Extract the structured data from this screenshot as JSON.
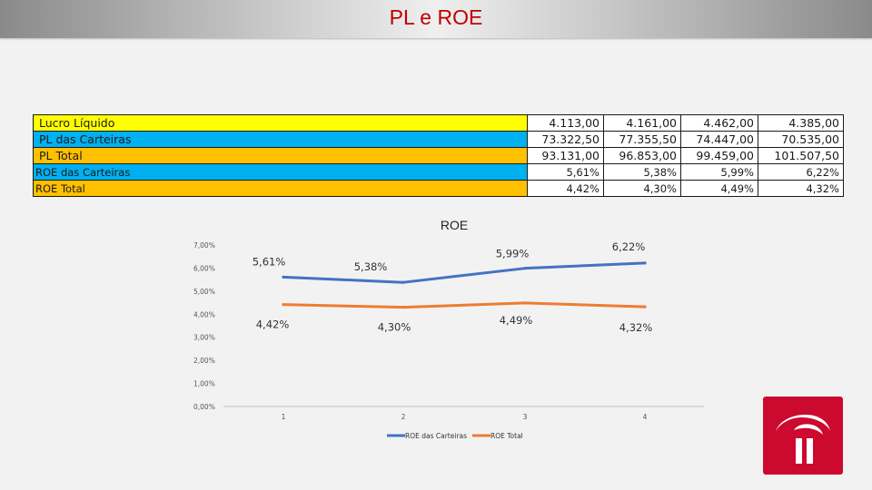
{
  "slide": {
    "title": "PL e ROE"
  },
  "table": {
    "rows": [
      {
        "label": "Lucro Líquido",
        "values": [
          "4.113,00",
          "4.161,00",
          "4.462,00",
          "4.385,00"
        ],
        "color": "#ffff00",
        "small": false
      },
      {
        "label": "PL das Carteiras",
        "values": [
          "73.322,50",
          "77.355,50",
          "74.447,00",
          "70.535,00"
        ],
        "color": "#00b0f0",
        "small": false
      },
      {
        "label": "PL Total",
        "values": [
          "93.131,00",
          "96.853,00",
          "99.459,00",
          "101.507,50"
        ],
        "color": "#ffc000",
        "small": false
      },
      {
        "label": "ROE das Carteiras",
        "values": [
          "5,61%",
          "5,38%",
          "5,99%",
          "6,22%"
        ],
        "color": "#00b0f0",
        "small": true
      },
      {
        "label": "ROE Total",
        "values": [
          "4,42%",
          "4,30%",
          "4,49%",
          "4,32%"
        ],
        "color": "#ffc000",
        "small": true
      }
    ]
  },
  "chart_data": {
    "type": "line",
    "title": "ROE",
    "x": [
      "1",
      "2",
      "3",
      "4"
    ],
    "ylim": [
      0,
      7
    ],
    "y_ticks": [
      "0,00%",
      "1,00%",
      "2,00%",
      "3,00%",
      "4,00%",
      "5,00%",
      "6,00%",
      "7,00%"
    ],
    "grid": false,
    "legend_position": "bottom",
    "series": [
      {
        "name": "ROE das Carteiras",
        "values": [
          5.61,
          5.38,
          5.99,
          6.22
        ],
        "labels": [
          "5,61%",
          "5,38%",
          "5,99%",
          "6,22%"
        ],
        "color": "#4472c4"
      },
      {
        "name": "ROE Total",
        "values": [
          4.42,
          4.3,
          4.49,
          4.32
        ],
        "labels": [
          "4,42%",
          "4,30%",
          "4,49%",
          "4,32%"
        ],
        "color": "#ed7d31"
      }
    ]
  },
  "logo": {
    "name": "bradesco-logo",
    "background": "#cc092f"
  }
}
